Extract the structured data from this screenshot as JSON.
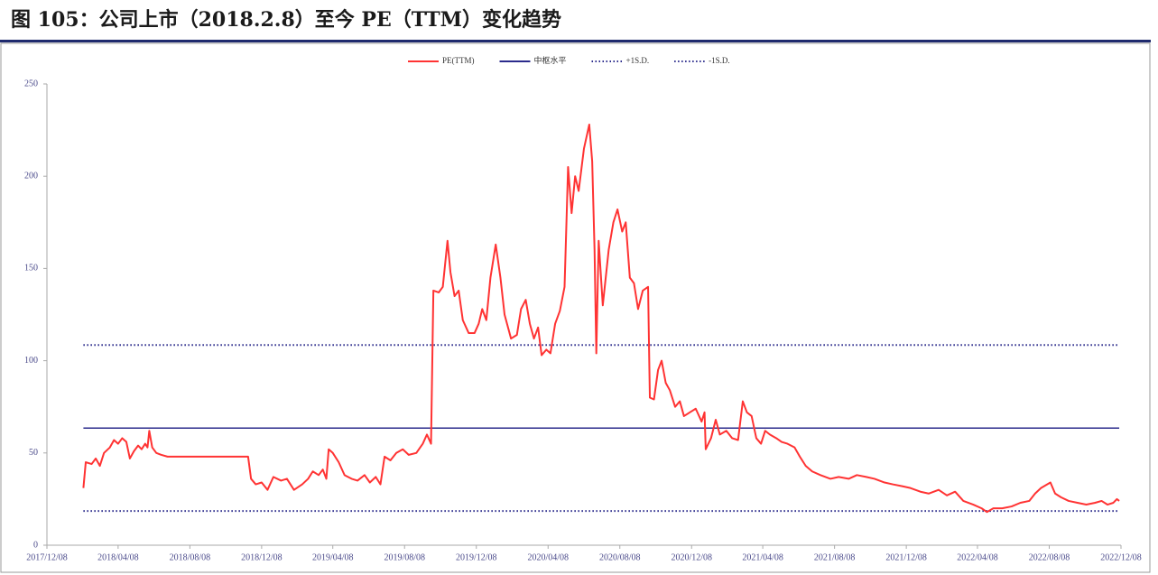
{
  "chart_data": {
    "type": "line",
    "title": "图 105：公司上市（2018.2.8）至今 PE（TTM）变化趋势",
    "x": [
      "2018/02/08",
      "2018/02/12",
      "2018/02/22",
      "2018/03/01",
      "2018/03/08",
      "2018/03/15",
      "2018/03/25",
      "2018/04/01",
      "2018/04/08",
      "2018/04/15",
      "2018/04/22",
      "2018/04/28",
      "2018/05/05",
      "2018/05/12",
      "2018/05/18",
      "2018/05/24",
      "2018/05/28",
      "2018/05/31",
      "2018/06/05",
      "2018/06/12",
      "2018/06/20",
      "2018/07/01",
      "2018/08/08",
      "2018/10/01",
      "2018/11/15",
      "2018/11/20",
      "2018/11/28",
      "2018/12/08",
      "2018/12/18",
      "2018/12/28",
      "2019/01/10",
      "2019/01/20",
      "2019/02/01",
      "2019/02/15",
      "2019/02/25",
      "2019/03/05",
      "2019/03/15",
      "2019/03/22",
      "2019/03/28",
      "2019/04/01",
      "2019/04/08",
      "2019/04/18",
      "2019/04/28",
      "2019/05/10",
      "2019/05/20",
      "2019/06/01",
      "2019/06/10",
      "2019/06/20",
      "2019/06/28",
      "2019/07/05",
      "2019/07/15",
      "2019/07/25",
      "2019/08/05",
      "2019/08/15",
      "2019/08/28",
      "2019/09/08",
      "2019/09/15",
      "2019/09/22",
      "2019/09/26",
      "2019/10/05",
      "2019/10/12",
      "2019/10/20",
      "2019/10/25",
      "2019/11/01",
      "2019/11/08",
      "2019/11/15",
      "2019/11/25",
      "2019/12/05",
      "2019/12/12",
      "2019/12/18",
      "2019/12/25",
      "2020/01/01",
      "2020/01/06",
      "2020/01/10",
      "2020/01/18",
      "2020/01/25",
      "2020/02/05",
      "2020/02/15",
      "2020/02/22",
      "2020/03/01",
      "2020/03/08",
      "2020/03/15",
      "2020/03/22",
      "2020/03/28",
      "2020/04/05",
      "2020/04/12",
      "2020/04/20",
      "2020/04/28",
      "2020/05/06",
      "2020/05/12",
      "2020/05/18",
      "2020/05/24",
      "2020/05/30",
      "2020/06/08",
      "2020/06/17",
      "2020/06/22",
      "2020/06/26",
      "2020/06/29",
      "2020/07/03",
      "2020/07/10",
      "2020/07/20",
      "2020/07/28",
      "2020/08/04",
      "2020/08/12",
      "2020/08/18",
      "2020/08/25",
      "2020/09/01",
      "2020/09/08",
      "2020/09/16",
      "2020/09/25",
      "2020/09/28",
      "2020/10/05",
      "2020/10/12",
      "2020/10/18",
      "2020/10/25",
      "2020/11/01",
      "2020/11/10",
      "2020/11/18",
      "2020/11/25",
      "2020/12/05",
      "2020/12/15",
      "2020/12/25",
      "2020/12/30",
      "2021/01/01",
      "2021/01/10",
      "2021/01/18",
      "2021/01/25",
      "2021/02/05",
      "2021/02/15",
      "2021/02/25",
      "2021/03/05",
      "2021/03/12",
      "2021/03/20",
      "2021/03/28",
      "2021/04/05",
      "2021/04/12",
      "2021/04/20",
      "2021/05/01",
      "2021/05/10",
      "2021/05/20",
      "2021/06/01",
      "2021/06/10",
      "2021/06/20",
      "2021/07/01",
      "2021/07/15",
      "2021/08/01",
      "2021/08/15",
      "2021/09/01",
      "2021/09/15",
      "2021/10/01",
      "2021/10/15",
      "2021/11/01",
      "2021/11/15",
      "2021/12/01",
      "2021/12/15",
      "2022/01/01",
      "2022/01/15",
      "2022/02/01",
      "2022/02/15",
      "2022/03/01",
      "2022/03/15",
      "2022/04/01",
      "2022/04/15",
      "2022/04/24",
      "2022/05/05",
      "2022/05/20",
      "2022/06/05",
      "2022/06/20",
      "2022/07/05",
      "2022/07/15",
      "2022/07/25",
      "2022/08/10",
      "2022/08/18",
      "2022/08/28",
      "2022/09/10",
      "2022/09/25",
      "2022/10/10",
      "2022/10/25",
      "2022/11/05",
      "2022/11/15",
      "2022/11/25",
      "2022/12/01",
      "2022/12/05"
    ],
    "series": [
      {
        "name": "PE(TTM)",
        "color": "#ff3333",
        "values": [
          31,
          45,
          44,
          47,
          43,
          50,
          53,
          57,
          55,
          58,
          56,
          47,
          51,
          54,
          52,
          55,
          53,
          62,
          53,
          50,
          49,
          48,
          48,
          48,
          48,
          36,
          33,
          34,
          30,
          37,
          35,
          36,
          30,
          33,
          36,
          40,
          38,
          41,
          36,
          52,
          50,
          45,
          38,
          36,
          35,
          38,
          34,
          37,
          33,
          48,
          46,
          50,
          52,
          49,
          50,
          55,
          60,
          55,
          138,
          137,
          140,
          165,
          148,
          135,
          138,
          122,
          115,
          115,
          120,
          128,
          122,
          145,
          155,
          163,
          145,
          125,
          112,
          114,
          128,
          133,
          120,
          112,
          118,
          103,
          106,
          104,
          120,
          127,
          140,
          205,
          180,
          200,
          192,
          215,
          228,
          208,
          160,
          104,
          165,
          130,
          160,
          175,
          182,
          170,
          175,
          145,
          142,
          128,
          138,
          140,
          80,
          79,
          95,
          100,
          88,
          84,
          75,
          78,
          70,
          72,
          74,
          67,
          72,
          52,
          58,
          68,
          60,
          62,
          58,
          57,
          78,
          72,
          70,
          58,
          55,
          62,
          60,
          58,
          56,
          55,
          53,
          48,
          43,
          40,
          38,
          36,
          37,
          36,
          38,
          37,
          36,
          34,
          33,
          32,
          31,
          29,
          28,
          30,
          27,
          29,
          24,
          22,
          20,
          18,
          20,
          20,
          21,
          23,
          24,
          28,
          31,
          34,
          28,
          26,
          24,
          23,
          22,
          23,
          24,
          22,
          23,
          25,
          24
        ]
      }
    ],
    "reference_lines": [
      {
        "name": "中枢水平",
        "value": 63.5,
        "color": "#2b2b8c",
        "style": "solid"
      },
      {
        "name": "+1S.D.",
        "value": 108.5,
        "color": "#2b2b8c",
        "style": "dotted"
      },
      {
        "name": "-1S.D.",
        "value": 18.5,
        "color": "#2b2b8c",
        "style": "dotted"
      }
    ],
    "xlim": [
      "2017/12/08",
      "2022/12/08"
    ],
    "xticks": [
      "2017/12/08",
      "2018/04/08",
      "2018/08/08",
      "2018/12/08",
      "2019/04/08",
      "2019/08/08",
      "2019/12/08",
      "2020/04/08",
      "2020/08/08",
      "2020/12/08",
      "2021/04/08",
      "2021/08/08",
      "2021/12/08",
      "2022/04/08",
      "2022/08/08",
      "2022/12/08"
    ],
    "ylim": [
      0,
      250
    ],
    "yticks": [
      0,
      50,
      100,
      150,
      200,
      250
    ],
    "legend": "top"
  }
}
